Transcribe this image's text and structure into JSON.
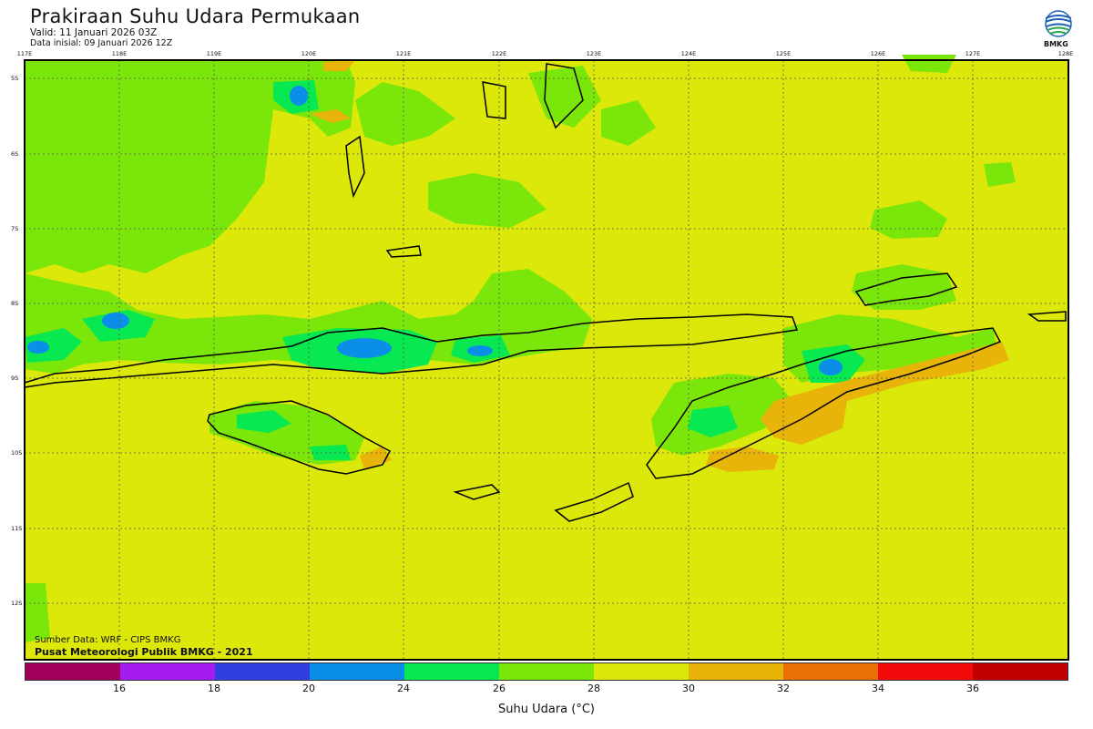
{
  "header": {
    "title": "Prakiraan Suhu Udara Permukaan",
    "valid": "Valid: 11 Januari 2026 03Z",
    "init": "Data inisial: 09 Januari 2026 12Z",
    "logo_text": "BMKG"
  },
  "map": {
    "lon_labels": [
      "117E",
      "118E",
      "119E",
      "120E",
      "121E",
      "122E",
      "123E",
      "124E",
      "125E",
      "126E",
      "127E",
      "128E"
    ],
    "lat_labels": [
      "5S",
      "6S",
      "7S",
      "8S",
      "9S",
      "10S",
      "11S",
      "12S"
    ],
    "background_color": "#dbe80a"
  },
  "credits": {
    "source": "Sumber Data: WRF - CIPS BMKG",
    "publisher": "Pusat Meteorologi Publik BMKG - 2021"
  },
  "legend": {
    "colors": [
      "#a0005a",
      "#a51cf0",
      "#3040e0",
      "#0a8ee8",
      "#08e850",
      "#7be60a",
      "#dbe80a",
      "#e8b40a",
      "#e87005",
      "#f00a0a",
      "#c00000"
    ],
    "labels": [
      "16",
      "18",
      "20",
      "24",
      "26",
      "28",
      "30",
      "32",
      "34",
      "36"
    ],
    "unit": "Suhu Udara (°C)"
  }
}
